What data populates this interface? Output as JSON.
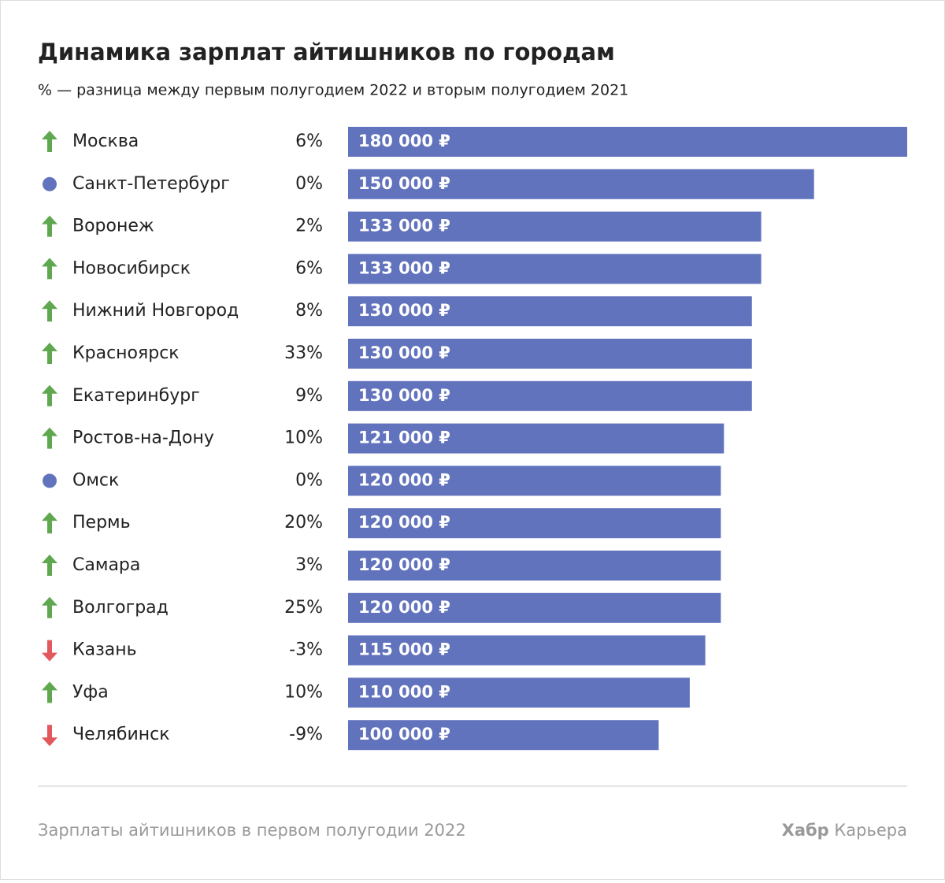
{
  "chart_data": {
    "type": "bar",
    "title": "Динамика зарплат айтишников по городам",
    "subtitle": "% — разница между первым полугодием 2022 и вторым полугодием 2021",
    "categories": [
      "Москва",
      "Санкт-Петербург",
      "Воронеж",
      "Новосибирск",
      "Нижний Новгород",
      "Красноярск",
      "Екатеринбург",
      "Ростов-на-Дону",
      "Омск",
      "Пермь",
      "Самара",
      "Волгоград",
      "Казань",
      "Уфа",
      "Челябинск"
    ],
    "values": [
      180000,
      150000,
      133000,
      133000,
      130000,
      130000,
      130000,
      121000,
      120000,
      120000,
      120000,
      120000,
      115000,
      110000,
      100000
    ],
    "value_labels": [
      "180 000 ₽",
      "150 000 ₽",
      "133 000 ₽",
      "133 000 ₽",
      "130 000 ₽",
      "130 000 ₽",
      "130 000 ₽",
      "121 000 ₽",
      "120 000 ₽",
      "120 000 ₽",
      "120 000 ₽",
      "120 000 ₽",
      "115 000 ₽",
      "110 000 ₽",
      "100 000 ₽"
    ],
    "color": "#6273bd",
    "xlim": [
      0,
      180000
    ],
    "change": {
      "values": [
        6,
        0,
        2,
        6,
        8,
        33,
        9,
        10,
        0,
        20,
        3,
        25,
        -3,
        10,
        -9
      ],
      "value_labels": [
        "6%",
        "0%",
        "2%",
        "6%",
        "8%",
        "33%",
        "9%",
        "10%",
        "0%",
        "20%",
        "3%",
        "25%",
        "-3%",
        "10%",
        "-9%"
      ],
      "up_color": "#5fa84f",
      "down_color": "#e2585c",
      "flat_color": "#6273bd"
    }
  },
  "footer": {
    "note": "Зарплаты айтишников в первом полугодии 2022",
    "brand": "Хабр",
    "brand_suffix": "Карьера"
  }
}
